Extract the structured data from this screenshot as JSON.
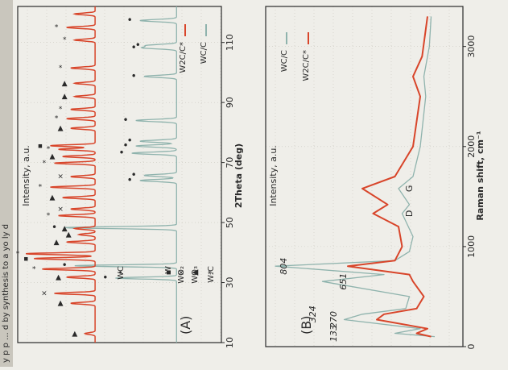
{
  "colors": {
    "paper": "#efeee9",
    "ink": "#2a2a2a",
    "grid": "#c9c7bf",
    "wc_line": "#8fb3ad",
    "w2c_line": "#d8452a",
    "header_strip": "#c9c6bd"
  },
  "header": {
    "fragment": "y p   p   ... d by synthesis to a yo ly d"
  },
  "chart_data": [
    {
      "type": "line",
      "panel_label": "(A)",
      "xlabel": "2Theta (deg)",
      "ylabel": "Intensity, a.u.",
      "xlim": [
        10,
        122
      ],
      "x_ticks": [
        10,
        30,
        50,
        70,
        90,
        110
      ],
      "grid": true,
      "legend_position": "top-left",
      "series": [
        {
          "name": "WC/C",
          "color": "#8fb3ad",
          "baseline": 0.22,
          "peaks": [
            {
              "x": 31.5,
              "h": 0.3,
              "w": 0.3
            },
            {
              "x": 35.6,
              "h": 0.5,
              "w": 0.3
            },
            {
              "x": 48.3,
              "h": 0.55,
              "w": 0.32
            },
            {
              "x": 64.0,
              "h": 0.18,
              "w": 0.35
            },
            {
              "x": 65.7,
              "h": 0.16,
              "w": 0.35
            },
            {
              "x": 73.1,
              "h": 0.22,
              "w": 0.35
            },
            {
              "x": 75.5,
              "h": 0.2,
              "w": 0.35
            },
            {
              "x": 77.1,
              "h": 0.18,
              "w": 0.35
            },
            {
              "x": 84.0,
              "h": 0.2,
              "w": 0.35
            },
            {
              "x": 98.7,
              "h": 0.16,
              "w": 0.35
            },
            {
              "x": 108.2,
              "h": 0.16,
              "w": 0.35
            },
            {
              "x": 109.0,
              "h": 0.14,
              "w": 0.35
            },
            {
              "x": 117.3,
              "h": 0.18,
              "w": 0.35
            }
          ]
        },
        {
          "name": "W2C/C*",
          "color": "#d8452a",
          "baseline": 0.62,
          "peaks": [
            {
              "x": 13.0,
              "h": 0.05,
              "w": 0.3
            },
            {
              "x": 23.1,
              "h": 0.12,
              "w": 0.3
            },
            {
              "x": 26.4,
              "h": 0.2,
              "w": 0.3
            },
            {
              "x": 31.8,
              "h": 0.14,
              "w": 0.3
            },
            {
              "x": 34.5,
              "h": 0.26,
              "w": 0.3
            },
            {
              "x": 38.0,
              "h": 0.3,
              "w": 0.3
            },
            {
              "x": 39.6,
              "h": 0.34,
              "w": 0.3
            },
            {
              "x": 43.5,
              "h": 0.14,
              "w": 0.3
            },
            {
              "x": 46.0,
              "h": 0.08,
              "w": 0.3
            },
            {
              "x": 48.0,
              "h": 0.1,
              "w": 0.3
            },
            {
              "x": 52.3,
              "h": 0.18,
              "w": 0.3
            },
            {
              "x": 54.5,
              "h": 0.12,
              "w": 0.3
            },
            {
              "x": 58.3,
              "h": 0.16,
              "w": 0.3
            },
            {
              "x": 61.8,
              "h": 0.22,
              "w": 0.3
            },
            {
              "x": 65.3,
              "h": 0.12,
              "w": 0.3
            },
            {
              "x": 69.8,
              "h": 0.2,
              "w": 0.3
            },
            {
              "x": 72.0,
              "h": 0.16,
              "w": 0.3
            },
            {
              "x": 74.4,
              "h": 0.18,
              "w": 0.3
            },
            {
              "x": 75.6,
              "h": 0.22,
              "w": 0.3
            },
            {
              "x": 81.4,
              "h": 0.12,
              "w": 0.3
            },
            {
              "x": 84.6,
              "h": 0.14,
              "w": 0.3
            },
            {
              "x": 87.7,
              "h": 0.12,
              "w": 0.3
            },
            {
              "x": 92.0,
              "h": 0.1,
              "w": 0.3
            },
            {
              "x": 96.4,
              "h": 0.1,
              "w": 0.3
            },
            {
              "x": 101.5,
              "h": 0.12,
              "w": 0.3
            },
            {
              "x": 110.8,
              "h": 0.1,
              "w": 0.3
            },
            {
              "x": 115.0,
              "h": 0.14,
              "w": 0.3
            },
            {
              "x": 119.5,
              "h": 0.1,
              "w": 0.3
            }
          ]
        }
      ],
      "markers": [
        {
          "sym": "▲",
          "x": 13.0,
          "lv": 0.72
        },
        {
          "sym": "▲",
          "x": 23.1,
          "lv": 0.79
        },
        {
          "sym": "×",
          "x": 26.4,
          "lv": 0.87
        },
        {
          "sym": "▲",
          "x": 31.8,
          "lv": 0.8
        },
        {
          "sym": "*",
          "x": 34.5,
          "lv": 0.92
        },
        {
          "sym": "▪",
          "x": 38.0,
          "lv": 0.96
        },
        {
          "sym": "*",
          "x": 39.6,
          "lv": 1.0
        },
        {
          "sym": "▲",
          "x": 43.5,
          "lv": 0.81
        },
        {
          "sym": "▲",
          "x": 46.0,
          "lv": 0.75
        },
        {
          "sym": "▲",
          "x": 48.0,
          "lv": 0.77
        },
        {
          "sym": "*",
          "x": 52.3,
          "lv": 0.85
        },
        {
          "sym": "×",
          "x": 54.5,
          "lv": 0.79
        },
        {
          "sym": "▲",
          "x": 58.3,
          "lv": 0.83
        },
        {
          "sym": "*",
          "x": 61.8,
          "lv": 0.89
        },
        {
          "sym": "×",
          "x": 65.3,
          "lv": 0.79
        },
        {
          "sym": "*",
          "x": 69.8,
          "lv": 0.87
        },
        {
          "sym": "▲",
          "x": 72.0,
          "lv": 0.83
        },
        {
          "sym": "*",
          "x": 74.4,
          "lv": 0.85
        },
        {
          "sym": "▪",
          "x": 75.6,
          "lv": 0.89
        },
        {
          "sym": "▲",
          "x": 81.4,
          "lv": 0.79
        },
        {
          "sym": "*",
          "x": 84.6,
          "lv": 0.81
        },
        {
          "sym": "*",
          "x": 87.7,
          "lv": 0.79
        },
        {
          "sym": "▲",
          "x": 92.0,
          "lv": 0.77
        },
        {
          "sym": "▲",
          "x": 96.4,
          "lv": 0.77
        },
        {
          "sym": "*",
          "x": 101.5,
          "lv": 0.79
        },
        {
          "sym": "*",
          "x": 110.8,
          "lv": 0.77
        },
        {
          "sym": "*",
          "x": 115.0,
          "lv": 0.81
        },
        {
          "sym": "•",
          "x": 31.5,
          "lv": 0.57
        },
        {
          "sym": "•",
          "x": 35.6,
          "lv": 0.77
        },
        {
          "sym": "•",
          "x": 48.3,
          "lv": 0.82
        },
        {
          "sym": "•",
          "x": 64.0,
          "lv": 0.45
        },
        {
          "sym": "•",
          "x": 65.7,
          "lv": 0.43
        },
        {
          "sym": "•",
          "x": 73.1,
          "lv": 0.49
        },
        {
          "sym": "•",
          "x": 75.5,
          "lv": 0.47
        },
        {
          "sym": "•",
          "x": 77.1,
          "lv": 0.45
        },
        {
          "sym": "•",
          "x": 84.0,
          "lv": 0.47
        },
        {
          "sym": "•",
          "x": 98.7,
          "lv": 0.43
        },
        {
          "sym": "•",
          "x": 108.2,
          "lv": 0.43
        },
        {
          "sym": "•",
          "x": 109.0,
          "lv": 0.41
        },
        {
          "sym": "•",
          "x": 117.3,
          "lv": 0.45
        }
      ],
      "marker_legend": [
        {
          "sym": "*",
          "label": "W₂C"
        },
        {
          "sym": "▲",
          "label": "WO₃"
        },
        {
          "sym": "×",
          "label": "WO₂"
        },
        {
          "sym": "▪",
          "label": "W"
        },
        {
          "sym": "•",
          "label": "WC"
        }
      ]
    },
    {
      "type": "line",
      "panel_label": "(B)",
      "xlabel": "Raman shift, cm⁻¹",
      "ylabel": "Intensity, a.u.",
      "xlim": [
        0,
        3400
      ],
      "x_ticks": [
        0,
        1000,
        2000,
        3000
      ],
      "grid": true,
      "legend_position": "top-right",
      "series": [
        {
          "name": "WC/C",
          "color": "#8fb3ad",
          "points": [
            [
              100,
              0.12
            ],
            [
              133,
              0.34
            ],
            [
              180,
              0.2
            ],
            [
              270,
              0.62
            ],
            [
              324,
              0.52
            ],
            [
              380,
              0.28
            ],
            [
              500,
              0.26
            ],
            [
              651,
              0.74
            ],
            [
              720,
              0.4
            ],
            [
              804,
              1.0
            ],
            [
              860,
              0.34
            ],
            [
              950,
              0.26
            ],
            [
              1100,
              0.24
            ],
            [
              1330,
              0.3
            ],
            [
              1420,
              0.26
            ],
            [
              1580,
              0.32
            ],
            [
              1700,
              0.24
            ],
            [
              2000,
              0.2
            ],
            [
              2500,
              0.17
            ],
            [
              2700,
              0.18
            ],
            [
              3000,
              0.15
            ],
            [
              3300,
              0.14
            ]
          ]
        },
        {
          "name": "W2C/C*",
          "color": "#d8452a",
          "points": [
            [
              100,
              0.14
            ],
            [
              133,
              0.22
            ],
            [
              180,
              0.16
            ],
            [
              270,
              0.44
            ],
            [
              324,
              0.4
            ],
            [
              380,
              0.22
            ],
            [
              500,
              0.18
            ],
            [
              651,
              0.24
            ],
            [
              720,
              0.26
            ],
            [
              804,
              0.6
            ],
            [
              860,
              0.34
            ],
            [
              1000,
              0.3
            ],
            [
              1200,
              0.32
            ],
            [
              1330,
              0.46
            ],
            [
              1420,
              0.38
            ],
            [
              1580,
              0.52
            ],
            [
              1700,
              0.34
            ],
            [
              2000,
              0.24
            ],
            [
              2500,
              0.2
            ],
            [
              2700,
              0.24
            ],
            [
              2900,
              0.19
            ],
            [
              3300,
              0.16
            ]
          ]
        }
      ],
      "peak_labels": [
        "133",
        "270",
        "324",
        "651",
        "804"
      ],
      "band_labels": [
        "D",
        "G"
      ]
    }
  ]
}
